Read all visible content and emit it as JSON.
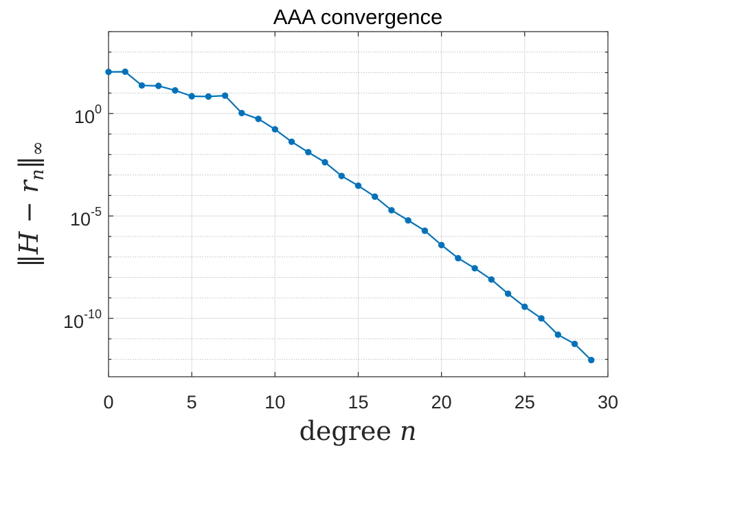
{
  "chart_data": {
    "type": "line",
    "title": "AAA convergence",
    "xlabel": "degree n",
    "ylabel": "||H − rₙ||∞",
    "xlim": [
      0,
      30
    ],
    "ylim_log10": [
      -12.85,
      4.0
    ],
    "yscale": "log",
    "x_ticks": [
      "0",
      "5",
      "10",
      "15",
      "20",
      "25",
      "30"
    ],
    "y_ticks": [
      {
        "base": "10",
        "exp": "0"
      },
      {
        "base": "10",
        "exp": "-5"
      },
      {
        "base": "10",
        "exp": "-10"
      }
    ],
    "grid": true,
    "minor_grid": true,
    "marker": "filled-circle",
    "series": [
      {
        "color": "#0072BD",
        "x": [
          0,
          1,
          2,
          3,
          4,
          5,
          6,
          7,
          8,
          9,
          10,
          11,
          12,
          13,
          14,
          15,
          16,
          17,
          18,
          19,
          20,
          21,
          22,
          23,
          24,
          25,
          26,
          27,
          28,
          29
        ],
        "y": [
          108,
          110,
          23.5,
          22.5,
          13.5,
          7.0,
          6.8,
          7.5,
          1.06,
          0.55,
          0.17,
          0.042,
          0.013,
          0.0042,
          0.0009,
          0.0003,
          8.8e-05,
          1.9e-05,
          6.1e-06,
          1.9e-06,
          3.8e-07,
          8.7e-08,
          2.8e-08,
          7.9e-09,
          1.6e-09,
          3.7e-10,
          1e-10,
          1.6e-11,
          5.7e-12,
          9.2e-13
        ]
      }
    ]
  }
}
